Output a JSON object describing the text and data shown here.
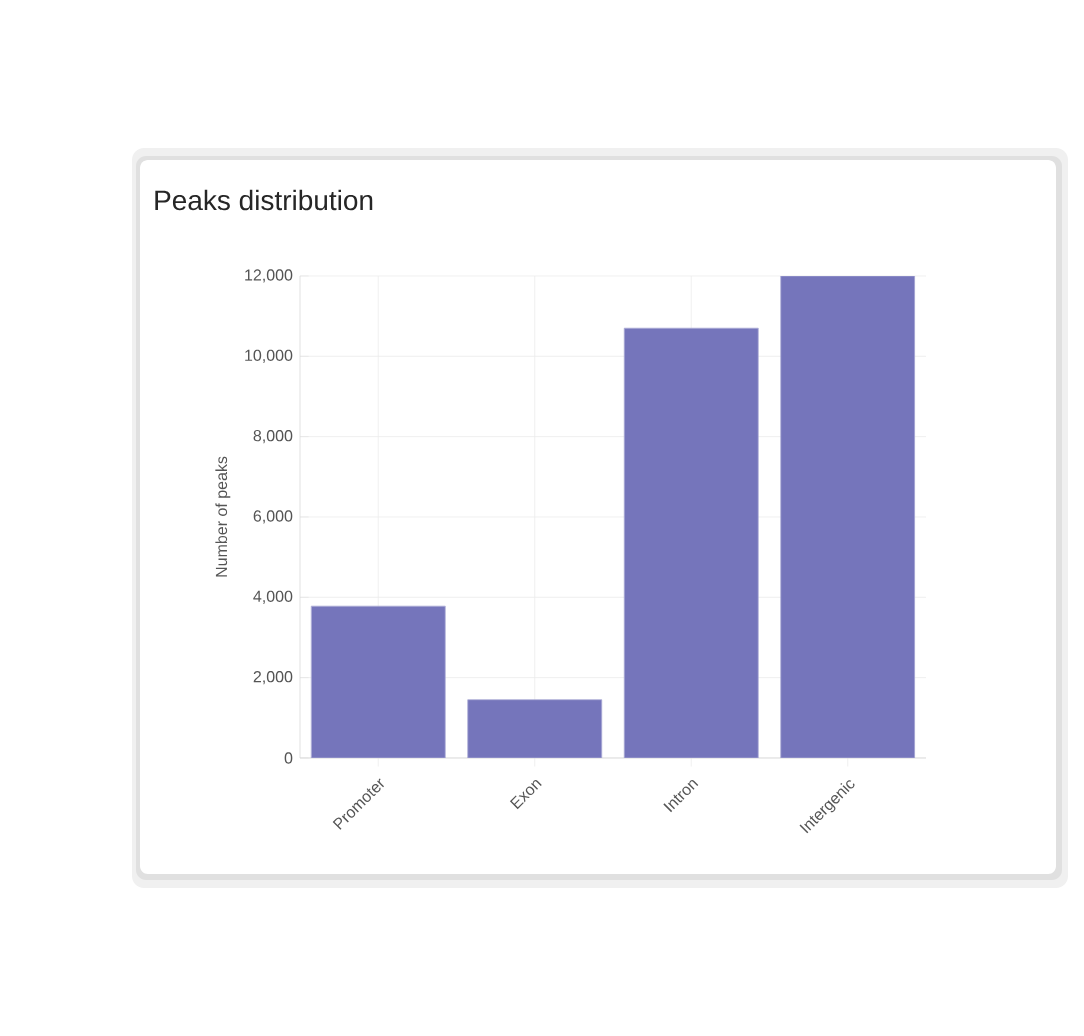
{
  "chart_data": {
    "type": "bar",
    "title": "Peaks distribution",
    "ylabel": "Number of peaks",
    "categories": [
      "Promoter",
      "Exon",
      "Intron",
      "Intergenic"
    ],
    "values": [
      3780,
      1450,
      10700,
      12000
    ],
    "color": "#7575bb",
    "ylim": [
      0,
      12000
    ],
    "yticks": [
      {
        "value": 0,
        "label": "0"
      },
      {
        "value": 2000,
        "label": "2,000"
      },
      {
        "value": 4000,
        "label": "4,000"
      },
      {
        "value": 6000,
        "label": "6,000"
      },
      {
        "value": 8000,
        "label": "8,000"
      },
      {
        "value": 10000,
        "label": "10,000"
      },
      {
        "value": 12000,
        "label": "12,000"
      }
    ],
    "grid": true
  }
}
